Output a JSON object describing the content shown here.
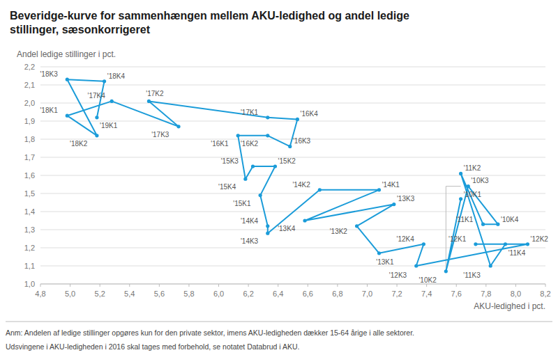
{
  "chart_data": {
    "type": "line",
    "title": "Beveridge-kurve for sammenhængen mellem AKU-ledighed og andel ledige",
    "subtitle": "stillinger, sæsonkorrigeret",
    "y_label": "Andel ledige stillinger i pct.",
    "x_label": "AKU-ledighed i pct.",
    "footnotes": [
      "Anm: Andelen af ledige stillinger opgøres kun for den private sektor, imens AKU-ledigheden dækker 15-64 årige i alle sektorer.",
      "Udsvingene i AKU-ledigheden i 2016 skal tages med forbehold, se notatet Databrud i AKU."
    ],
    "x": [
      7.63,
      7.53,
      7.68,
      7.88,
      7.78,
      7.63,
      7.83,
      7.93,
      7.73,
      8.08,
      7.33,
      7.38,
      7.08,
      6.93,
      7.18,
      6.58,
      7.08,
      6.68,
      6.33,
      6.33,
      6.28,
      6.38,
      6.23,
      6.18,
      6.13,
      6.33,
      6.48,
      6.53,
      6.33,
      5.53,
      5.73,
      5.28,
      4.98,
      5.18,
      4.98,
      5.23,
      5.18
    ],
    "series": [
      {
        "color": "#1B9CD9",
        "marker": "circle",
        "values": [
          1.47,
          1.07,
          1.54,
          1.33,
          1.33,
          1.61,
          1.1,
          1.22,
          1.22,
          1.22,
          1.1,
          1.22,
          1.17,
          1.32,
          1.44,
          1.35,
          1.52,
          1.52,
          1.28,
          1.32,
          1.49,
          1.65,
          1.65,
          1.58,
          1.82,
          1.82,
          1.76,
          1.91,
          1.92,
          2.01,
          1.87,
          2.01,
          1.93,
          1.82,
          2.13,
          2.12,
          1.92
        ]
      }
    ],
    "point_labels": [
      "'10K1",
      "'10K2",
      "'10K3",
      "'10K4",
      "'11K1",
      "'11K2",
      "'11K3",
      "'11K4",
      "'12K1",
      "'12K2",
      "'12K3",
      "'12K4",
      "'13K1",
      "'13K2",
      "'13K3",
      "'13K4",
      "'14K1",
      "'14K2",
      "'14K3",
      "'14K4",
      "'15K1",
      "'15K2",
      "'15K3",
      "'15K4",
      "'16K1",
      "'16K2",
      "'16K3",
      "'16K4",
      "'17K1",
      "'17K2",
      "'17K3",
      "'17K4",
      "'18K1",
      "'18K2",
      "'18K3",
      "'18K4",
      "'19K1"
    ],
    "bracket": {
      "x1": 7.53,
      "x2": 7.63,
      "y_top": 1.54,
      "y_bot": 1.07
    },
    "xlim": [
      4.8,
      8.2
    ],
    "ylim": [
      1.0,
      2.2
    ],
    "xticks": [
      {
        "value": 4.8,
        "label": "4,8"
      },
      {
        "value": 5.0,
        "label": "5,0"
      },
      {
        "value": 5.2,
        "label": "5,2"
      },
      {
        "value": 5.4,
        "label": "5,4"
      },
      {
        "value": 5.6,
        "label": "5,6"
      },
      {
        "value": 5.8,
        "label": "5,8"
      },
      {
        "value": 6.0,
        "label": "6,0"
      },
      {
        "value": 6.2,
        "label": "6,2"
      },
      {
        "value": 6.4,
        "label": "6,4"
      },
      {
        "value": 6.6,
        "label": "6,6"
      },
      {
        "value": 6.8,
        "label": "6,8"
      },
      {
        "value": 7.0,
        "label": "7,0"
      },
      {
        "value": 7.2,
        "label": "7,2"
      },
      {
        "value": 7.4,
        "label": "7,4"
      },
      {
        "value": 7.6,
        "label": "7,6"
      },
      {
        "value": 7.8,
        "label": "7,8"
      },
      {
        "value": 8.0,
        "label": "8,0"
      },
      {
        "value": 8.2,
        "label": "8,2"
      }
    ],
    "yticks": [
      {
        "value": 1.0,
        "label": "1,0"
      },
      {
        "value": 1.1,
        "label": "1,1"
      },
      {
        "value": 1.2,
        "label": "1,2"
      },
      {
        "value": 1.3,
        "label": "1,3"
      },
      {
        "value": 1.4,
        "label": "1,4"
      },
      {
        "value": 1.5,
        "label": "1,5"
      },
      {
        "value": 1.6,
        "label": "1,6"
      },
      {
        "value": 1.7,
        "label": "1,7"
      },
      {
        "value": 1.8,
        "label": "1,8"
      },
      {
        "value": 1.9,
        "label": "1,9"
      },
      {
        "value": 2.0,
        "label": "2,0"
      },
      {
        "value": 2.1,
        "label": "2,1"
      },
      {
        "value": 2.2,
        "label": "2,2"
      }
    ],
    "grid": "y"
  }
}
